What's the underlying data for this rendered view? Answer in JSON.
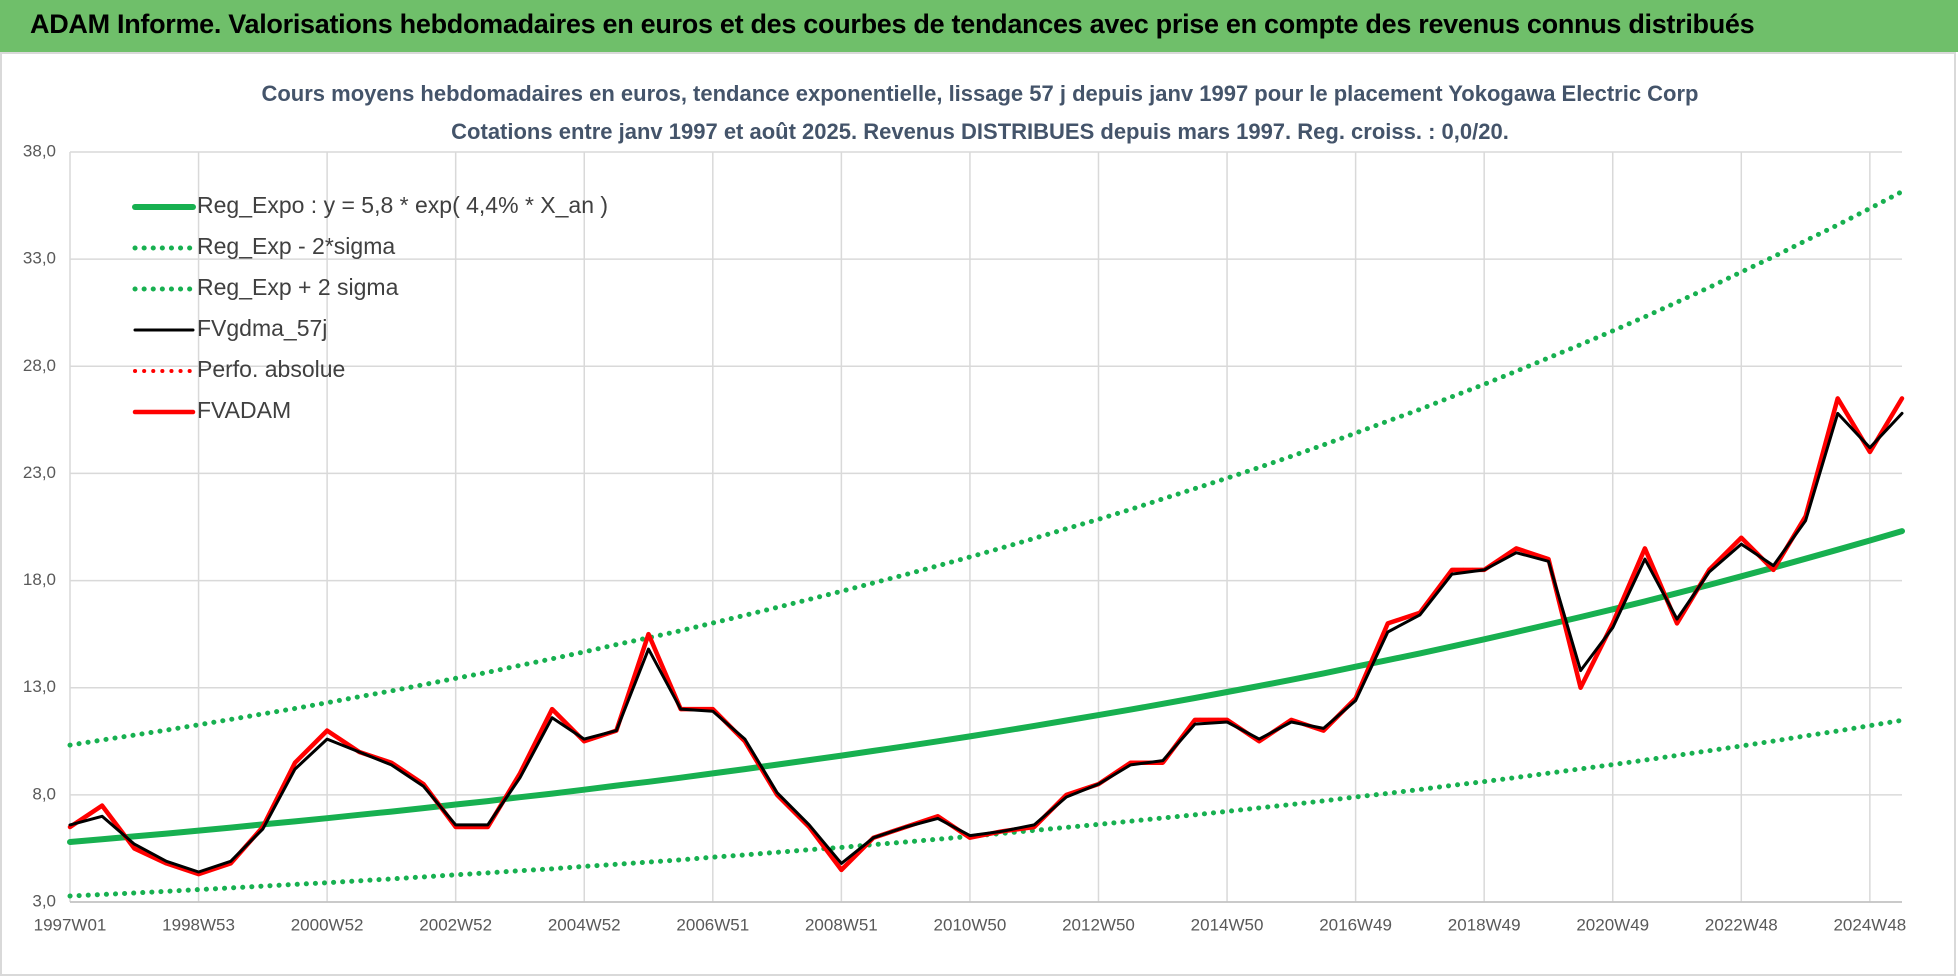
{
  "header": {
    "title": "ADAM Informe. Valorisations hebdomadaires en euros et des courbes de tendances avec prise en compte des revenus connus distribués"
  },
  "chart_data": {
    "type": "line",
    "title": "Cours moyens hebdomadaires en euros, tendance exponentielle, lissage 57 j depuis janv 1997 pour le placement Yokogawa Electric Corp",
    "subtitle": "Cotations entre janv 1997 et août 2025.  Revenus DISTRIBUES depuis mars 1997. Reg. croiss. : 0,0/20.",
    "categories": [
      "1997W01",
      null,
      null,
      null,
      "1998W53",
      null,
      null,
      null,
      "2000W52",
      null,
      null,
      null,
      "2002W52",
      null,
      null,
      null,
      "2004W52",
      null,
      null,
      null,
      "2006W51",
      null,
      null,
      null,
      "2008W51",
      null,
      null,
      null,
      "2010W50",
      null,
      null,
      null,
      "2012W50",
      null,
      null,
      null,
      "2014W50",
      null,
      null,
      null,
      "2016W49",
      null,
      null,
      null,
      "2018W49",
      null,
      null,
      null,
      "2020W49",
      null,
      null,
      null,
      "2022W48",
      null,
      null,
      null,
      "2024W48",
      null
    ],
    "ylim": [
      3,
      38
    ],
    "yticks": [
      {
        "value": 3,
        "label": "3,0"
      },
      {
        "value": 8,
        "label": "8,0"
      },
      {
        "value": 13,
        "label": "13,0"
      },
      {
        "value": 18,
        "label": "18,0"
      },
      {
        "value": 23,
        "label": "23,0"
      },
      {
        "value": 28,
        "label": "28,0"
      },
      {
        "value": 33,
        "label": "33,0"
      },
      {
        "value": 38,
        "label": "38,0"
      }
    ],
    "grid": true,
    "legend": "upper-left",
    "series": [
      {
        "name": "Reg_Expo : y = 5,8 * exp( 4,4% *  X_an )",
        "color": "#17b050",
        "style": "solid",
        "values": [
          5.8,
          5.93,
          6.06,
          6.19,
          6.33,
          6.47,
          6.62,
          6.76,
          6.91,
          7.07,
          7.22,
          7.38,
          7.55,
          7.71,
          7.89,
          8.06,
          8.24,
          8.43,
          8.61,
          8.8,
          9.0,
          9.2,
          9.41,
          9.62,
          9.83,
          10.05,
          10.27,
          10.5,
          10.73,
          10.97,
          11.22,
          11.47,
          11.72,
          11.98,
          12.25,
          12.52,
          12.8,
          13.08,
          13.37,
          13.67,
          13.98,
          14.29,
          14.6,
          14.93,
          15.26,
          15.6,
          15.95,
          16.3,
          16.66,
          17.03,
          17.41,
          17.8,
          18.2,
          18.6,
          19.02,
          19.44,
          19.87,
          20.31
        ]
      },
      {
        "name": "Reg_Exp - 2*sigma",
        "color": "#17b050",
        "style": "dotted",
        "values": [
          3.28,
          3.35,
          3.42,
          3.5,
          3.58,
          3.66,
          3.74,
          3.82,
          3.9,
          3.99,
          4.08,
          4.17,
          4.27,
          4.36,
          4.46,
          4.55,
          4.66,
          4.76,
          4.86,
          4.97,
          5.09,
          5.2,
          5.32,
          5.44,
          5.55,
          5.68,
          5.8,
          5.93,
          6.06,
          6.2,
          6.34,
          6.48,
          6.62,
          6.77,
          6.92,
          7.07,
          7.23,
          7.39,
          7.55,
          7.72,
          7.9,
          8.07,
          8.25,
          8.44,
          8.62,
          8.81,
          9.01,
          9.21,
          9.41,
          9.62,
          9.84,
          10.06,
          10.28,
          10.51,
          10.75,
          10.98,
          11.23,
          11.48
        ]
      },
      {
        "name": "Reg_Exp + 2 sigma",
        "color": "#17b050",
        "style": "dotted",
        "values": [
          10.32,
          10.56,
          10.79,
          11.02,
          11.27,
          11.52,
          11.78,
          12.03,
          12.3,
          12.58,
          12.85,
          13.14,
          13.44,
          13.72,
          14.04,
          14.35,
          14.67,
          15.01,
          15.33,
          15.66,
          16.02,
          16.38,
          16.75,
          17.12,
          17.5,
          17.89,
          18.28,
          18.69,
          19.1,
          19.53,
          19.97,
          20.42,
          20.86,
          21.32,
          21.81,
          22.29,
          22.78,
          23.28,
          23.8,
          24.33,
          24.88,
          25.44,
          25.99,
          26.58,
          27.16,
          27.77,
          28.39,
          29.01,
          29.65,
          30.31,
          30.99,
          31.68,
          32.4,
          33.11,
          33.86,
          34.6,
          35.37,
          36.15
        ]
      },
      {
        "name": "FVgdma_57j",
        "color": "#000000",
        "style": "solid",
        "values": [
          6.6,
          7.0,
          5.7,
          4.9,
          4.4,
          4.9,
          6.4,
          9.2,
          10.6,
          10.0,
          9.4,
          8.4,
          6.6,
          6.6,
          8.8,
          11.6,
          10.6,
          11.0,
          14.8,
          12.0,
          11.9,
          10.6,
          8.1,
          6.6,
          4.8,
          6.0,
          6.5,
          6.9,
          6.1,
          6.3,
          6.6,
          7.9,
          8.5,
          9.4,
          9.6,
          11.3,
          11.4,
          10.6,
          11.4,
          11.1,
          12.4,
          15.6,
          16.4,
          18.3,
          18.5,
          19.3,
          18.9,
          13.8,
          15.8,
          19.0,
          16.2,
          18.4,
          19.7,
          18.7,
          20.8,
          25.8,
          24.2,
          25.8
        ]
      },
      {
        "name": "Perfo. absolue",
        "color": "#ff0000",
        "style": "dotted",
        "values": [
          6.5,
          7.5,
          5.5,
          4.8,
          4.3,
          4.8,
          6.5,
          9.5,
          11.0,
          10.0,
          9.5,
          8.5,
          6.5,
          6.5,
          9.0,
          12.0,
          10.5,
          11.0,
          15.5,
          12.0,
          12.0,
          10.5,
          8.0,
          6.5,
          4.5,
          6.0,
          6.5,
          7.0,
          6.0,
          6.3,
          6.5,
          8.0,
          8.5,
          9.5,
          9.5,
          11.5,
          11.5,
          10.5,
          11.5,
          11.0,
          12.5,
          16.0,
          16.5,
          18.5,
          18.5,
          19.5,
          19.0,
          13.0,
          16.0,
          19.5,
          16.0,
          18.5,
          20.0,
          18.5,
          21.0,
          26.5,
          24.0,
          26.5
        ]
      },
      {
        "name": "FVADAM",
        "color": "#ff0000",
        "style": "solid",
        "values": [
          6.5,
          7.5,
          5.5,
          4.8,
          4.3,
          4.8,
          6.5,
          9.5,
          11.0,
          10.0,
          9.5,
          8.5,
          6.5,
          6.5,
          9.0,
          12.0,
          10.5,
          11.0,
          15.5,
          12.0,
          12.0,
          10.5,
          8.0,
          6.5,
          4.5,
          6.0,
          6.5,
          7.0,
          6.0,
          6.3,
          6.5,
          8.0,
          8.5,
          9.5,
          9.5,
          11.5,
          11.5,
          10.5,
          11.5,
          11.0,
          12.5,
          16.0,
          16.5,
          18.5,
          18.5,
          19.5,
          19.0,
          13.0,
          16.0,
          19.5,
          16.0,
          18.5,
          20.0,
          18.5,
          21.0,
          26.5,
          24.0,
          26.5
        ]
      }
    ]
  }
}
